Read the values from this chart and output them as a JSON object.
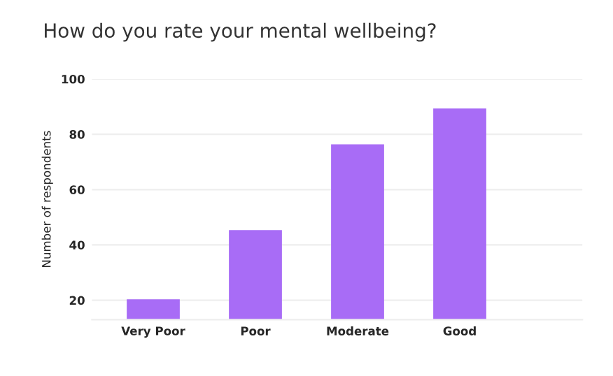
{
  "chart_data": {
    "type": "bar",
    "title": "How do you rate your mental wellbeing?",
    "ylabel": "Number of respondents",
    "categories": [
      "Very Poor",
      "Poor",
      "Moderate",
      "Good"
    ],
    "values": [
      20,
      45,
      76,
      89
    ],
    "color": "#a86cf6",
    "ylim": [
      13,
      100
    ],
    "yticks": [
      20,
      40,
      60,
      80,
      100
    ],
    "grid": "y"
  }
}
